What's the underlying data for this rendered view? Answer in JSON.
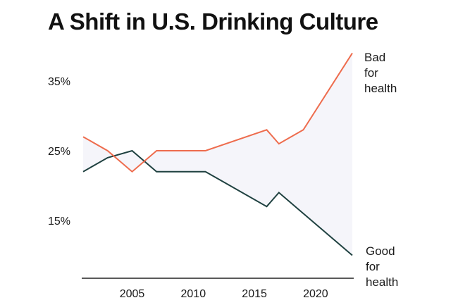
{
  "title": "A Shift in U.S. Drinking Culture",
  "chart_data": {
    "type": "line",
    "title": "A Shift in U.S. Drinking Culture",
    "xlabel": "",
    "ylabel": "",
    "x_ticks": [
      "2005",
      "2010",
      "2015",
      "2020"
    ],
    "y_ticks": [
      "35%",
      "25%",
      "15%"
    ],
    "xlim": [
      2000,
      2023
    ],
    "ylim": [
      8,
      40
    ],
    "grid": false,
    "shaded_between_series": true,
    "colors": {
      "bad": "#EE6C4D",
      "good": "#1F4140",
      "fill": "#F5F5FA",
      "axis": "#222222"
    },
    "series": [
      {
        "name": "Bad for health",
        "label_lines": [
          "Bad",
          "for",
          "health"
        ],
        "x": [
          2001,
          2003,
          2005,
          2007,
          2011,
          2016,
          2017,
          2019,
          2023
        ],
        "y": [
          27,
          25,
          22,
          25,
          25,
          28,
          26,
          28,
          39
        ]
      },
      {
        "name": "Good for health",
        "label_lines": [
          "Good",
          "for",
          "health"
        ],
        "x": [
          2001,
          2003,
          2005,
          2007,
          2011,
          2016,
          2017,
          2019,
          2023
        ],
        "y": [
          22,
          24,
          25,
          22,
          22,
          17,
          19,
          16,
          10
        ]
      }
    ]
  }
}
